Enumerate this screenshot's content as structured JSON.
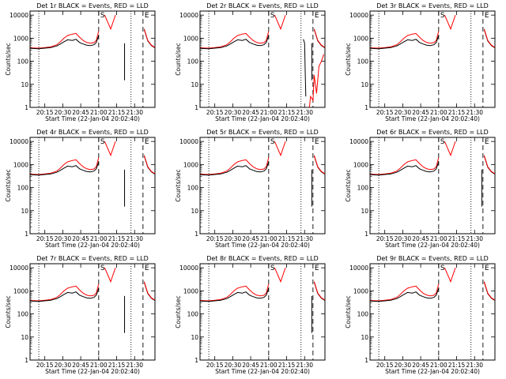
{
  "colors": {
    "events": "#000000",
    "lld": "#ff0000",
    "background": "#ffffff",
    "axes": "#000000"
  },
  "chart_data": [
    {
      "type": "line",
      "title": "Det 1r BLACK = Events, RED = LLD",
      "detector": "1r",
      "saa_exit": false,
      "drop_lines": [
        21.36
      ]
    },
    {
      "type": "line",
      "title": "Det 2r BLACK = Events, RED = LLD",
      "detector": "2r",
      "saa_exit": true,
      "drop_lines": [
        21.6
      ]
    },
    {
      "type": "line",
      "title": "Det 3r BLACK = Events, RED = LLD",
      "detector": "3r",
      "saa_exit": false,
      "drop_lines": []
    },
    {
      "type": "line",
      "title": "Det 4r BLACK = Events, RED = LLD",
      "detector": "4r",
      "saa_exit": false,
      "drop_lines": [
        21.36
      ]
    },
    {
      "type": "line",
      "title": "Det 5r BLACK = Events, RED = LLD",
      "detector": "5r",
      "saa_exit": false,
      "drop_lines": [
        21.6
      ]
    },
    {
      "type": "line",
      "title": "Det 6r BLACK = Events, RED = LLD",
      "detector": "6r",
      "saa_exit": false,
      "drop_lines": [
        21.6
      ]
    },
    {
      "type": "line",
      "title": "Det 7r BLACK = Events, RED = LLD",
      "detector": "7r",
      "saa_exit": false,
      "drop_lines": [
        21.36
      ]
    },
    {
      "type": "line",
      "title": "Det 8r BLACK = Events, RED = LLD",
      "detector": "8r",
      "saa_exit": false,
      "drop_lines": [
        21.6
      ]
    },
    {
      "type": "line",
      "title": "Det 9r BLACK = Events, RED = LLD",
      "detector": "9r",
      "saa_exit": false,
      "drop_lines": []
    }
  ],
  "shared": {
    "xlabel": "Start Time (22-Jan-04 20:02:40)",
    "ylabel": "Counts/sec",
    "x_ticks": [
      "20:15",
      "20:30",
      "20:45",
      "21:00",
      "21:15",
      "21:30"
    ],
    "y_ticks": [
      "1",
      "10",
      "100",
      "1000",
      "10000"
    ],
    "ylim": [
      1,
      15000
    ],
    "y_scale": "log",
    "xlim": [
      "20:02:40",
      "21:47:00"
    ],
    "markers": {
      "S": "21:00",
      "E": "21:37"
    },
    "events_series": {
      "name": "Events",
      "color": "#000000",
      "x": [
        "20:03",
        "20:10",
        "20:15",
        "20:20",
        "20:25",
        "20:28",
        "20:31",
        "20:34",
        "20:38",
        "20:41",
        "20:44",
        "20:47",
        "20:50",
        "20:53",
        "20:56",
        "20:58",
        "21:00"
      ],
      "y": [
        360,
        350,
        370,
        390,
        460,
        560,
        700,
        850,
        800,
        900,
        650,
        560,
        500,
        480,
        520,
        650,
        1300
      ]
    },
    "lld_series": {
      "name": "LLD",
      "color": "#ff0000",
      "x": [
        "20:03",
        "20:10",
        "20:15",
        "20:20",
        "20:25",
        "20:28",
        "20:31",
        "20:34",
        "20:38",
        "20:41",
        "20:44",
        "20:47",
        "20:50",
        "20:53",
        "20:56",
        "20:58",
        "21:00"
      ],
      "y": [
        380,
        370,
        390,
        420,
        520,
        700,
        1000,
        1300,
        1500,
        1600,
        1100,
        800,
        650,
        600,
        640,
        800,
        2000
      ]
    },
    "saa_dip": {
      "x": [
        "21:05",
        "21:10",
        "21:14"
      ],
      "y": [
        10000,
        2500,
        10000
      ]
    },
    "decay": {
      "x": [
        "21:38",
        "21:41",
        "21:44",
        "21:47"
      ],
      "y": [
        2500,
        800,
        500,
        400
      ]
    },
    "vertical_lines": [
      {
        "x": "20:10",
        "style": "dotted"
      },
      {
        "x": "21:00",
        "style": "dashed"
      },
      {
        "x": "21:27",
        "style": "dotted"
      },
      {
        "x": "21:37",
        "style": "dashed"
      }
    ]
  }
}
